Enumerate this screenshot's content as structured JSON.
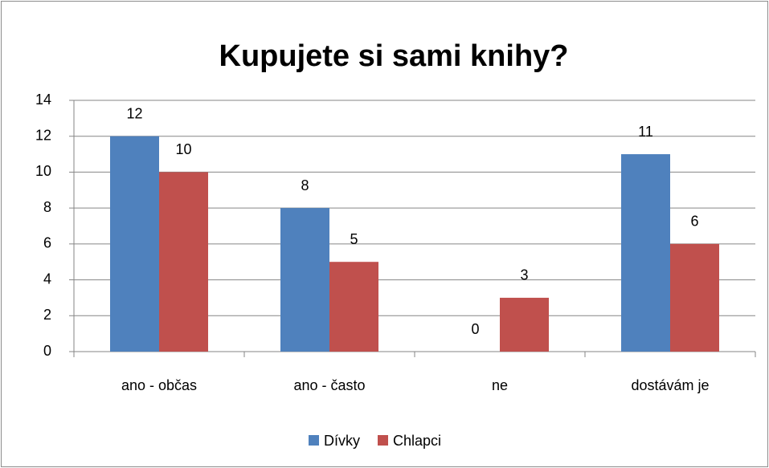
{
  "chart_data": {
    "type": "bar",
    "title": "Kupujete si sami knihy?",
    "categories": [
      "ano - občas",
      "ano - často",
      "ne",
      "dostávám je"
    ],
    "series": [
      {
        "name": "Dívky",
        "color": "#4f81bd",
        "values": [
          12,
          8,
          0,
          11
        ]
      },
      {
        "name": "Chlapci",
        "color": "#c0504d",
        "values": [
          10,
          5,
          3,
          6
        ]
      }
    ],
    "ylim": [
      0,
      14
    ],
    "yticks": [
      0,
      2,
      4,
      6,
      8,
      10,
      12,
      14
    ],
    "grid": true,
    "legend": "bottom"
  }
}
